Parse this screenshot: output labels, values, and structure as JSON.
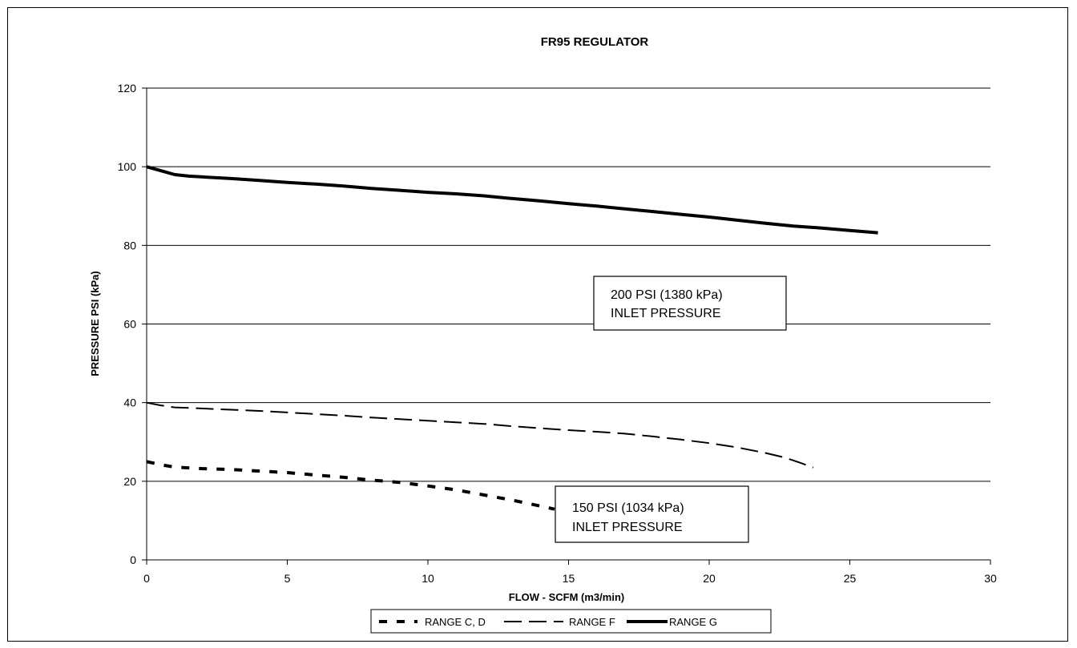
{
  "chart_data": {
    "type": "line",
    "title": "FR95 REGULATOR",
    "xlabel": "FLOW - SCFM (m3/min)",
    "ylabel": "PRESSURE PSI (kPa)",
    "xlim": [
      0,
      30
    ],
    "ylim": [
      0,
      120
    ],
    "xticks": [
      0,
      5,
      10,
      15,
      20,
      25,
      30
    ],
    "yticks": [
      0,
      20,
      40,
      60,
      80,
      100,
      120
    ],
    "grid": "horizontal",
    "legend_position": "bottom",
    "series": [
      {
        "name": "RANGE C, D",
        "style": "dashed-short-thick",
        "color": "#000000",
        "points": [
          [
            0,
            25
          ],
          [
            0.5,
            24.2
          ],
          [
            1,
            23.6
          ],
          [
            2,
            23.2
          ],
          [
            3,
            23
          ],
          [
            4,
            22.6
          ],
          [
            5,
            22.2
          ],
          [
            6,
            21.6
          ],
          [
            7,
            21
          ],
          [
            8,
            20.3
          ],
          [
            9,
            19.7
          ],
          [
            10,
            18.8
          ],
          [
            11,
            17.8
          ],
          [
            12,
            16.5
          ],
          [
            13,
            15.2
          ],
          [
            14,
            13.7
          ],
          [
            14.5,
            12.9
          ]
        ]
      },
      {
        "name": "RANGE F",
        "style": "dashed-long",
        "color": "#000000",
        "points": [
          [
            0,
            40
          ],
          [
            0.5,
            39.3
          ],
          [
            1,
            38.8
          ],
          [
            2,
            38.5
          ],
          [
            3,
            38.2
          ],
          [
            4,
            37.9
          ],
          [
            5,
            37.5
          ],
          [
            6,
            37.1
          ],
          [
            7,
            36.7
          ],
          [
            8,
            36.2
          ],
          [
            9,
            35.8
          ],
          [
            10,
            35.4
          ],
          [
            11,
            35
          ],
          [
            12,
            34.6
          ],
          [
            13,
            34
          ],
          [
            14,
            33.5
          ],
          [
            15,
            33
          ],
          [
            16,
            32.6
          ],
          [
            17,
            32.1
          ],
          [
            18,
            31.4
          ],
          [
            19,
            30.6
          ],
          [
            20,
            29.7
          ],
          [
            21,
            28.6
          ],
          [
            22,
            27.2
          ],
          [
            22.7,
            26
          ],
          [
            23.2,
            24.8
          ],
          [
            23.7,
            23.5
          ]
        ]
      },
      {
        "name": "RANGE G",
        "style": "solid-thick",
        "color": "#000000",
        "points": [
          [
            0,
            100
          ],
          [
            0.5,
            99
          ],
          [
            1,
            98
          ],
          [
            1.5,
            97.6
          ],
          [
            2,
            97.4
          ],
          [
            3,
            97
          ],
          [
            4,
            96.5
          ],
          [
            5,
            96
          ],
          [
            6,
            95.6
          ],
          [
            7,
            95.1
          ],
          [
            8,
            94.5
          ],
          [
            9,
            94
          ],
          [
            10,
            93.5
          ],
          [
            11,
            93.1
          ],
          [
            12,
            92.6
          ],
          [
            13,
            91.9
          ],
          [
            14,
            91.3
          ],
          [
            15,
            90.6
          ],
          [
            16,
            90
          ],
          [
            17,
            89.3
          ],
          [
            18,
            88.6
          ],
          [
            19,
            87.9
          ],
          [
            20,
            87.2
          ],
          [
            21,
            86.4
          ],
          [
            22,
            85.6
          ],
          [
            23,
            84.9
          ],
          [
            24,
            84.4
          ],
          [
            25,
            83.8
          ],
          [
            26,
            83.2
          ]
        ]
      }
    ],
    "annotations": [
      {
        "id": "annot-200",
        "line1": "200 PSI (1380 kPa)",
        "line2": "INLET PRESSURE"
      },
      {
        "id": "annot-150",
        "line1": "150 PSI (1034 kPa)",
        "line2": "INLET PRESSURE"
      }
    ]
  }
}
